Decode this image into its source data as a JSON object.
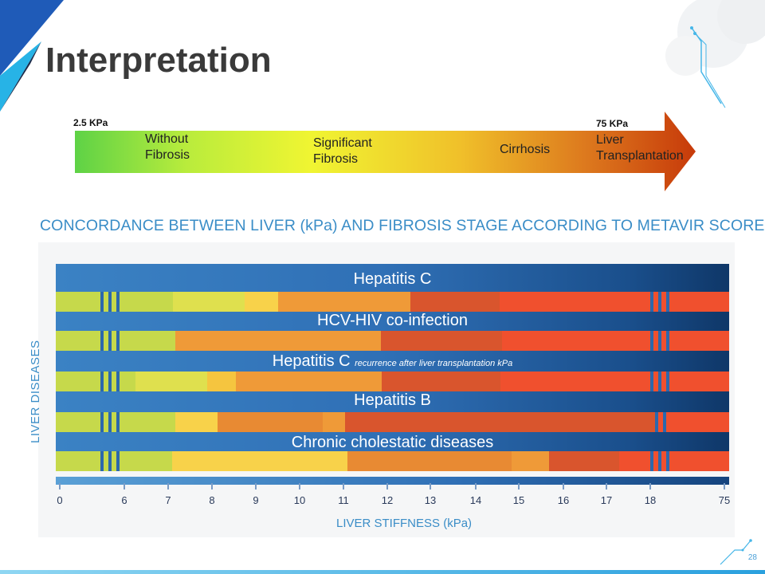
{
  "slide": {
    "title": "Interpretation",
    "page_number": "28"
  },
  "scale": {
    "start_label": "2.5 KPa",
    "end_label": "75 KPa",
    "labels": [
      "Without\nFibrosis",
      "Significant\nFibrosis",
      "Cirrhosis",
      "Liver\nTransplantation"
    ]
  },
  "figure": {
    "heading": "CONCORDANCE BETWEEN LIVER (kPa) AND FIBROSIS STAGE ACCORDING TO METAVIR SCORE",
    "y_axis_label": "LIVER DISEASES",
    "x_axis_label": "LIVER STIFFNESS (kPa)",
    "tick_labels": [
      "0",
      "6",
      "7",
      "8",
      "9",
      "10",
      "11",
      "12",
      "13",
      "14",
      "15",
      "16",
      "17",
      "18",
      "75"
    ],
    "diseases": [
      {
        "name": "Hepatitis C",
        "subtitle": ""
      },
      {
        "name": "HCV-HIV co-infection",
        "subtitle": ""
      },
      {
        "name": "Hepatitis C",
        "subtitle": "recurrence after liver transplantation kPa"
      },
      {
        "name": "Hepatitis B",
        "subtitle": ""
      },
      {
        "name": "Chronic cholestatic diseases",
        "subtitle": ""
      }
    ],
    "stage_colors": {
      "lime": "#c6d94b",
      "yellow_green": "#dfe04e",
      "yellow": "#f8d24a",
      "amber": "#f5c53f",
      "orange": "#ef9a38",
      "dark_orange": "#e88a33",
      "red_orange": "#d9552d",
      "red": "#f0502e"
    }
  }
}
